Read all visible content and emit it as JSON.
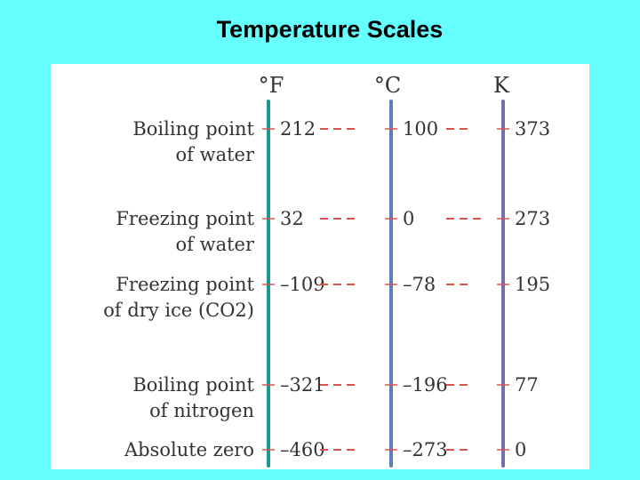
{
  "title": "Temperature Scales",
  "colors": {
    "background": "#66ffff",
    "panel": "#ffffff",
    "fahrenheit_axis": "#1a9a8c",
    "celsius_axis": "#5b7fb8",
    "kelvin_axis": "#6f6fb4",
    "dash": "#d9534f",
    "text": "#333333"
  },
  "scales": [
    {
      "key": "F",
      "label": "°F"
    },
    {
      "key": "C",
      "label": "°C"
    },
    {
      "key": "K",
      "label": "K"
    }
  ],
  "points": [
    {
      "label_lines": [
        "Boiling point",
        "of water"
      ],
      "F": "212",
      "C": "100",
      "K": "373"
    },
    {
      "label_lines": [
        "Freezing point",
        "of water"
      ],
      "F": "32",
      "C": "0",
      "K": "273"
    },
    {
      "label_lines": [
        "Freezing point",
        "of dry ice (CO2)"
      ],
      "F": "–109",
      "C": "–78",
      "K": "195"
    },
    {
      "label_lines": [
        "Boiling point",
        "of nitrogen"
      ],
      "F": "–321",
      "C": "–196",
      "K": "77"
    },
    {
      "label_lines": [
        "Absolute zero"
      ],
      "F": "–460",
      "C": "–273",
      "K": "0"
    }
  ]
}
